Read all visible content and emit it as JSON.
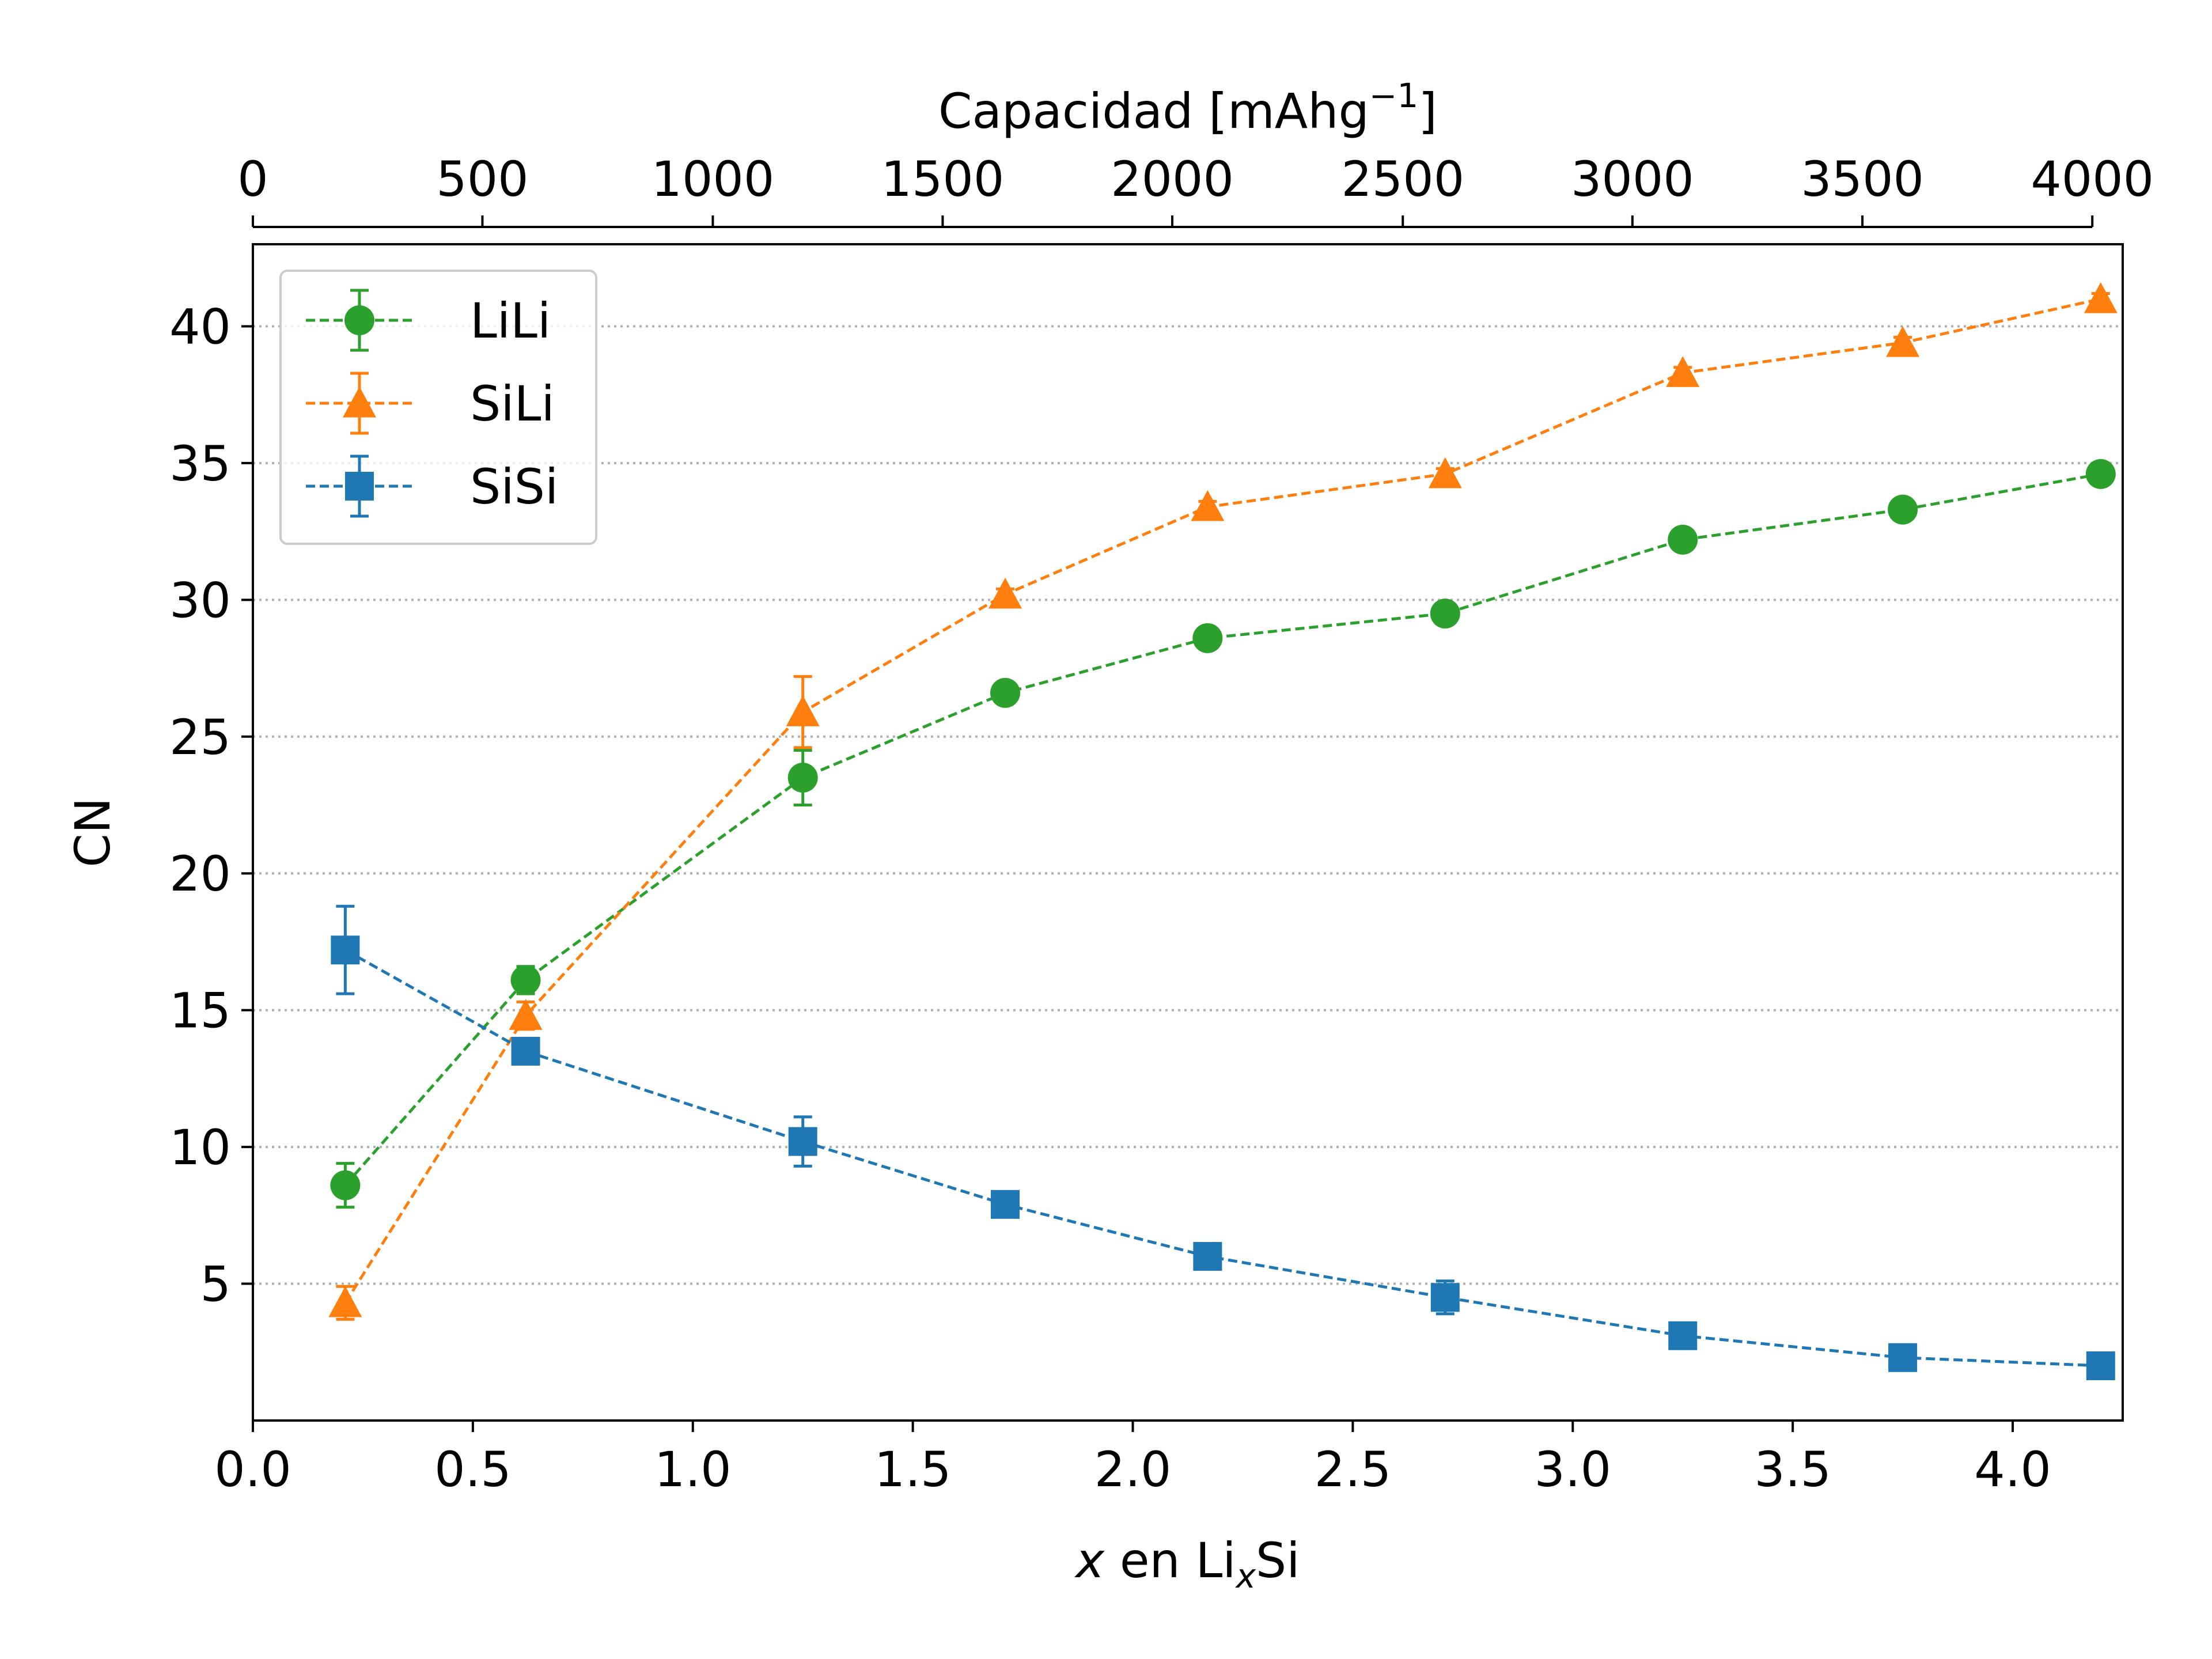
{
  "chart_data": {
    "type": "line",
    "xlabel_pre": "x",
    "xlabel_mid": " en Li",
    "xlabel_sub": "x",
    "xlabel_post": "Si",
    "ylabel": "CN",
    "top_xlabel": "Capacidad [mAhg",
    "top_xlabel_sup": "−1",
    "top_xlabel_close": "]",
    "xlim": [
      0,
      4.25
    ],
    "ylim": [
      0,
      43
    ],
    "xticks": [
      "0.0",
      "0.5",
      "1.0",
      "1.5",
      "2.0",
      "2.5",
      "3.0",
      "3.5",
      "4.0"
    ],
    "yticks": [
      "5",
      "10",
      "15",
      "20",
      "25",
      "30",
      "35",
      "40"
    ],
    "top_ticks": [
      {
        "x": 0,
        "label": "0"
      },
      {
        "x": 0.5217,
        "label": "500"
      },
      {
        "x": 1.0454,
        "label": "1000"
      },
      {
        "x": 1.5678,
        "label": "1500"
      },
      {
        "x": 2.0897,
        "label": "2000"
      },
      {
        "x": 2.6137,
        "label": "2500"
      },
      {
        "x": 3.1356,
        "label": "3000"
      },
      {
        "x": 3.6583,
        "label": "3500"
      },
      {
        "x": 4.1809,
        "label": "4000"
      }
    ],
    "grid": "horizontal dotted",
    "legend_position": "upper-left",
    "series": [
      {
        "name": "LiLi",
        "color": "#2ca02c",
        "marker": "circle",
        "x": [
          0.21,
          0.62,
          1.25,
          1.71,
          2.17,
          2.71,
          3.25,
          3.75,
          4.2
        ],
        "y": [
          8.6,
          16.1,
          23.5,
          26.6,
          28.6,
          29.5,
          32.2,
          33.3,
          34.6
        ],
        "err": [
          0.8,
          0.5,
          1.0,
          0.2,
          0.2,
          0.2,
          0.2,
          0.2,
          0.2
        ]
      },
      {
        "name": "SiLi",
        "color": "#ff7f0e",
        "marker": "triangle",
        "x": [
          0.21,
          0.62,
          1.25,
          1.71,
          2.17,
          2.71,
          3.25,
          3.75,
          4.2
        ],
        "y": [
          4.3,
          14.8,
          25.9,
          30.2,
          33.4,
          34.6,
          38.3,
          39.4,
          41.0
        ],
        "err": [
          0.6,
          0.5,
          1.3,
          0.2,
          0.2,
          0.2,
          0.2,
          0.2,
          0.2
        ]
      },
      {
        "name": "SiSi",
        "color": "#1f77b4",
        "marker": "square",
        "x": [
          0.21,
          0.62,
          1.25,
          1.71,
          2.17,
          2.71,
          3.25,
          3.75,
          4.2
        ],
        "y": [
          17.2,
          13.5,
          10.2,
          7.9,
          6.0,
          4.5,
          3.1,
          2.3,
          2.0
        ],
        "err": [
          1.6,
          0.3,
          0.9,
          0.2,
          0.2,
          0.6,
          0.2,
          0.2,
          0.2
        ]
      }
    ]
  }
}
